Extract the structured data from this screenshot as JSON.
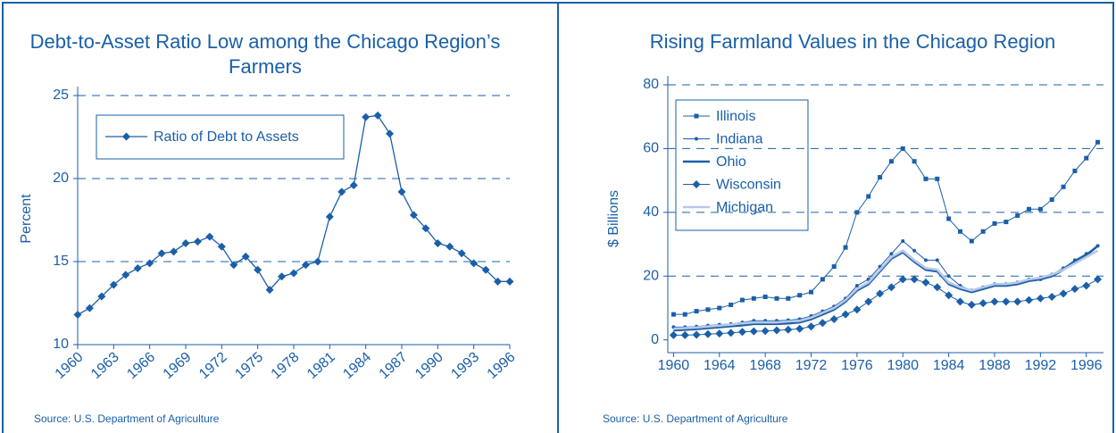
{
  "chart_data": [
    {
      "type": "line",
      "title": "Debt-to-Asset Ratio Low among the Chicago Region’s Farmers",
      "ylabel": "Percent",
      "source": "Source: U.S. Department of Agriculture",
      "x": [
        1960,
        1961,
        1962,
        1963,
        1964,
        1965,
        1966,
        1967,
        1968,
        1969,
        1970,
        1971,
        1972,
        1973,
        1974,
        1975,
        1976,
        1977,
        1978,
        1979,
        1980,
        1981,
        1982,
        1983,
        1984,
        1985,
        1986,
        1987,
        1988,
        1989,
        1990,
        1991,
        1992,
        1993,
        1994,
        1995,
        1996
      ],
      "xlim": [
        1960,
        1996
      ],
      "xticks": [
        1960,
        1963,
        1966,
        1969,
        1972,
        1975,
        1978,
        1981,
        1984,
        1987,
        1990,
        1993,
        1996
      ],
      "ylim": [
        10,
        25
      ],
      "yticks": [
        10,
        15,
        20,
        25
      ],
      "grid": true,
      "series": [
        {
          "name": "Ratio of Debt to Assets",
          "color": "#1a5fa8",
          "marker": "diamond",
          "line_width": 1.3,
          "values": [
            11.8,
            12.2,
            12.9,
            13.6,
            14.2,
            14.6,
            14.9,
            15.5,
            15.6,
            16.1,
            16.2,
            16.5,
            15.9,
            14.8,
            15.3,
            14.5,
            13.3,
            14.1,
            14.3,
            14.8,
            15.0,
            17.7,
            19.2,
            19.6,
            23.7,
            23.8,
            22.7,
            19.2,
            17.8,
            17.0,
            16.1,
            15.9,
            15.5,
            14.9,
            14.5,
            13.8,
            13.8
          ]
        }
      ]
    },
    {
      "type": "line",
      "title": "Rising Farmland Values in the Chicago Region",
      "ylabel": "$ Billions",
      "source": "Source: U.S. Department of Agriculture",
      "x": [
        1960,
        1961,
        1962,
        1963,
        1964,
        1965,
        1966,
        1967,
        1968,
        1969,
        1970,
        1971,
        1972,
        1973,
        1974,
        1975,
        1976,
        1977,
        1978,
        1979,
        1980,
        1981,
        1982,
        1983,
        1984,
        1985,
        1986,
        1987,
        1988,
        1989,
        1990,
        1991,
        1992,
        1993,
        1994,
        1995,
        1996,
        1997
      ],
      "xlim": [
        1959.5,
        1997.5
      ],
      "xticks": [
        1960,
        1964,
        1968,
        1972,
        1976,
        1980,
        1984,
        1988,
        1992,
        1996
      ],
      "ylim": [
        -4,
        80
      ],
      "yticks": [
        0,
        20,
        40,
        60,
        80
      ],
      "grid": true,
      "series": [
        {
          "name": "Illinois",
          "color": "#1a5fa8",
          "marker": "square",
          "line_width": 1,
          "values": [
            8,
            8,
            9,
            9.5,
            10,
            11,
            12.5,
            13,
            13.5,
            13,
            13,
            14,
            15,
            19,
            23,
            29,
            40,
            45,
            51,
            56,
            60,
            56,
            50.5,
            50.5,
            38,
            34,
            31,
            34,
            36.5,
            37,
            39,
            41,
            41,
            44,
            48,
            53,
            57,
            62
          ]
        },
        {
          "name": "Indiana",
          "color": "#1a5fa8",
          "marker": "circle",
          "line_width": 1,
          "values": [
            4,
            4,
            4.2,
            4.5,
            4.8,
            5,
            5.5,
            6,
            6,
            6,
            6.2,
            6.5,
            7.5,
            9,
            10.5,
            13,
            17,
            19,
            23,
            27,
            31,
            28,
            25,
            25,
            20,
            17,
            15.5,
            16.5,
            17.5,
            17.5,
            18,
            19,
            19,
            20.5,
            22.5,
            25,
            27,
            29.5
          ]
        },
        {
          "name": "Ohio",
          "color": "#1a5fa8",
          "marker": "none",
          "line_width": 2.6,
          "values": [
            3,
            3.2,
            3.4,
            3.7,
            4,
            4.3,
            4.6,
            5,
            5,
            5,
            5.2,
            5.5,
            6.5,
            8,
            9.5,
            12,
            15.5,
            17.5,
            21.5,
            25.5,
            27.5,
            24.5,
            22,
            21.5,
            17.5,
            16,
            15,
            16,
            17,
            17,
            17.5,
            18.5,
            19,
            20,
            22,
            24.5,
            26.5,
            29.5
          ]
        },
        {
          "name": "Wisconsin",
          "color": "#1a5fa8",
          "marker": "diamond",
          "line_width": 1,
          "values": [
            1.5,
            1.5,
            1.6,
            1.8,
            2,
            2.2,
            2.5,
            2.7,
            2.8,
            3,
            3.2,
            3.5,
            4.2,
            5.3,
            6.5,
            8,
            9.5,
            12,
            14.5,
            16.5,
            19,
            19,
            18,
            16.5,
            14,
            12,
            11,
            11.5,
            12,
            12,
            12,
            12.5,
            13,
            13.5,
            14.5,
            16,
            17,
            19
          ]
        },
        {
          "name": "Michigan",
          "color": "#b8c8e8",
          "marker": "none",
          "line_width": 2.6,
          "values": [
            3.5,
            3.7,
            3.9,
            4.2,
            4.5,
            4.8,
            5.2,
            5.5,
            5.5,
            5.5,
            5.8,
            6,
            7,
            8.5,
            10,
            12.5,
            16,
            18,
            22,
            26,
            28,
            25,
            22.5,
            22,
            18,
            16.5,
            15.5,
            16.5,
            17.5,
            17.5,
            18,
            19,
            19.5,
            20.5,
            22,
            24,
            26,
            28
          ]
        }
      ]
    }
  ]
}
